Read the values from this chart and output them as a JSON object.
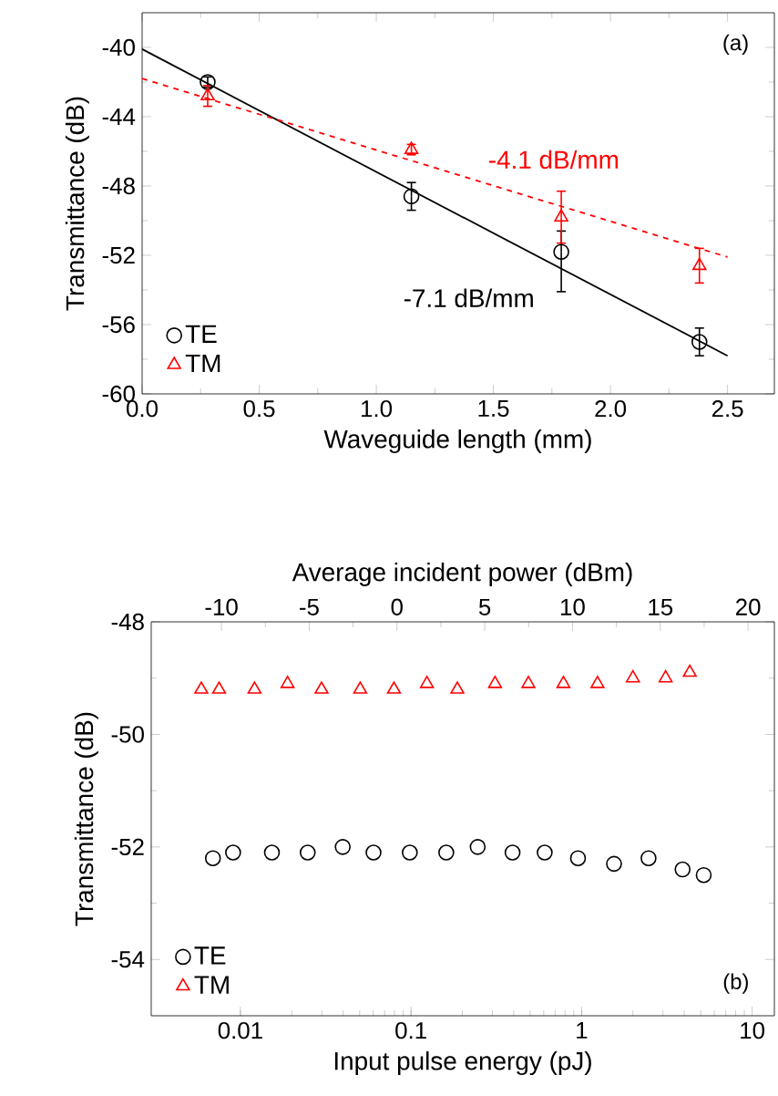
{
  "chart_data": [
    {
      "type": "scatter",
      "xlabel": "Waveguide length (mm)",
      "ylabel": "Transmittance (dB)",
      "xlim": [
        0,
        2.7
      ],
      "ylim": [
        -60,
        -38
      ],
      "xticks": [
        {
          "value": 0,
          "label": "0.0"
        },
        0.5,
        {
          "value": 1,
          "label": "1.0"
        },
        1.5,
        {
          "value": 2,
          "label": "2.0"
        },
        2.5
      ],
      "yticks": [
        -60,
        -56,
        -52,
        -48,
        -44,
        -40
      ],
      "legend": "bottom left",
      "series": [
        {
          "name": "TE",
          "marker": "circle",
          "color": "#000000",
          "x": [
            0.28,
            1.15,
            1.79,
            2.38
          ],
          "values": [
            -42,
            -48.6,
            -51.8,
            -57
          ],
          "errors": [
            0.3,
            0.8,
            [
              -54.1,
              -50.6
            ],
            0.8
          ]
        },
        {
          "name": "TM",
          "marker": "triangle",
          "color": "#ff0000",
          "x": [
            0.28,
            1.15,
            1.79,
            2.38
          ],
          "values": [
            -42.8,
            -45.9,
            -49.8,
            -52.6
          ],
          "errors": [
            0.6,
            0.3,
            1.5,
            1.0
          ]
        },
        {
          "type": "line",
          "color": "#000000",
          "line_style": "solid",
          "x": [
            0,
            2.5
          ],
          "values": [
            -40.1,
            -57.8
          ]
        },
        {
          "type": "line",
          "color": "#ff0000",
          "line_style": "dashed",
          "x": [
            0,
            2.5
          ],
          "values": [
            -41.8,
            -52.1
          ]
        }
      ],
      "annotations": [
        {
          "text": "-4.1 dB/mm",
          "x": 1.45,
          "y": -47.8
        },
        {
          "text": "-7.1 dB/mm",
          "x": 1.75,
          "y": -52.5
        },
        "(a)"
      ]
    },
    {
      "type": "scatter",
      "xlabel": "Input pulse energy (pJ)",
      "ylabel": "Transmittance (dB)",
      "x2label": "Average incident power (dBm)",
      "log": "x",
      "xlim": [
        0.003,
        13.5
      ],
      "ylim": [
        -55,
        -48
      ],
      "x2lim": [
        -14,
        21.5
      ],
      "xticks": [
        0.01,
        0.1,
        1,
        10
      ],
      "yticks": [
        -54,
        -52,
        -50,
        -48
      ],
      "x2ticks": [
        -10,
        -5,
        0,
        5,
        10,
        15,
        20
      ],
      "legend": "bottom left",
      "series": [
        {
          "name": "TE",
          "marker": "circle",
          "color": "#000000",
          "x": [
            0.0069,
            0.00906,
            0.0153,
            0.0248,
            0.0398,
            0.0603,
            0.0984,
            0.161,
            0.246,
            0.394,
            0.608,
            0.953,
            1.55,
            2.47,
            3.91,
            5.2
          ],
          "values": [
            -52.2,
            -52.1,
            -52.1,
            -52.1,
            -52.0,
            -52.1,
            -52.1,
            -52.1,
            -52.0,
            -52.1,
            -52.1,
            -52.2,
            -52.3,
            -52.2,
            -52.4,
            -52.5
          ]
        },
        {
          "name": "TM",
          "marker": "triangle",
          "color": "#ff0000",
          "x": [
            0.0059,
            0.0075,
            0.0121,
            0.0189,
            0.0299,
            0.0504,
            0.0795,
            0.124,
            0.187,
            0.311,
            0.488,
            0.783,
            1.24,
            2.0,
            3.11,
            4.31
          ],
          "values": [
            -49.2,
            -49.2,
            -49.2,
            -49.1,
            -49.2,
            -49.2,
            -49.2,
            -49.1,
            -49.2,
            -49.1,
            -49.1,
            -49.1,
            -49.1,
            -49.0,
            -49.0,
            -48.9
          ]
        }
      ],
      "annotations": [
        "(b)"
      ]
    }
  ]
}
